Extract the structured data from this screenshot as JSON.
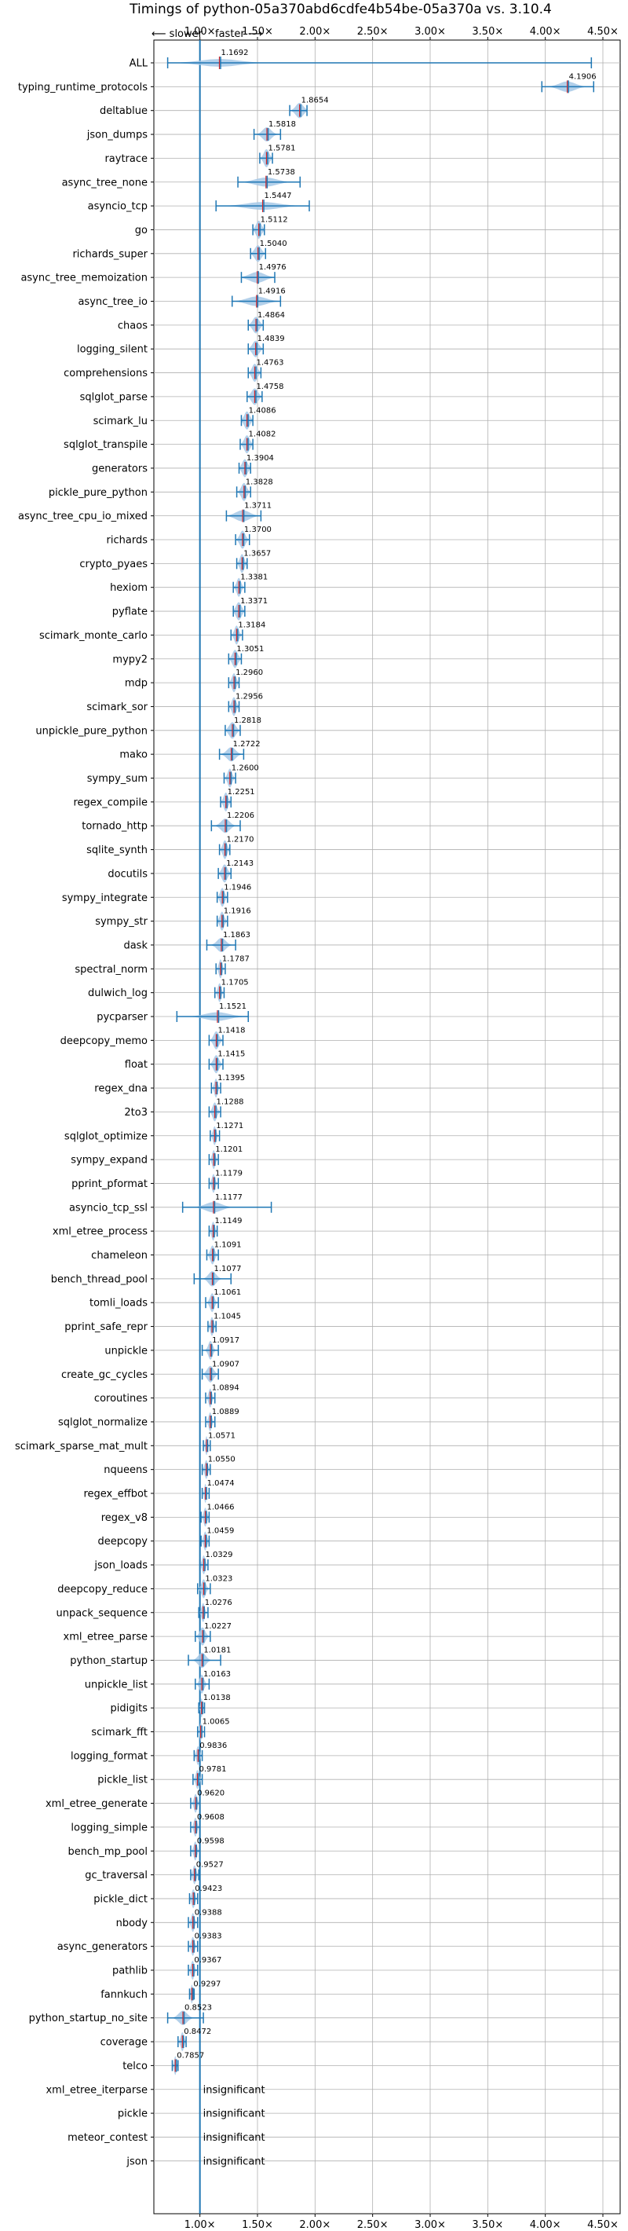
{
  "chart_data": {
    "type": "violin",
    "title": "Timings of python-05a370abd6cdfe4b54be-05a370a vs. 3.10.4",
    "direction_labels": {
      "slower": "⟵ slower",
      "faster": "faster ⟶"
    },
    "x_ticks": [
      "1.00×",
      "1.50×",
      "2.00×",
      "2.50×",
      "3.00×",
      "3.50×",
      "4.00×",
      "4.50×"
    ],
    "x_tick_values": [
      1.0,
      1.5,
      2.0,
      2.5,
      3.0,
      3.5,
      4.0,
      4.5
    ],
    "xlim": [
      0.6,
      4.65
    ],
    "baseline": 1.0,
    "grid": true,
    "insignificant_label": "insignificant",
    "colors": {
      "violin": "#a6c8e6",
      "axis_line": "#1f77b4",
      "median": "#d62728",
      "grid": "#b0b0b0"
    },
    "benchmarks": [
      {
        "name": "ALL",
        "value": 1.1692,
        "label": "1.1692",
        "lo": 0.72,
        "hi": 4.4,
        "spread": 0.35
      },
      {
        "name": "typing_runtime_protocols",
        "value": 4.1906,
        "label": "4.1906",
        "lo": 3.97,
        "hi": 4.42,
        "spread": 0.15
      },
      {
        "name": "deltablue",
        "value": 1.8654,
        "label": "1.8654",
        "lo": 1.78,
        "hi": 1.93,
        "spread": 0.07
      },
      {
        "name": "json_dumps",
        "value": 1.5818,
        "label": "1.5818",
        "lo": 1.47,
        "hi": 1.7,
        "spread": 0.08
      },
      {
        "name": "raytrace",
        "value": 1.5781,
        "label": "1.5781",
        "lo": 1.52,
        "hi": 1.63,
        "spread": 0.05
      },
      {
        "name": "async_tree_none",
        "value": 1.5738,
        "label": "1.5738",
        "lo": 1.33,
        "hi": 1.87,
        "spread": 0.2
      },
      {
        "name": "asyncio_tcp",
        "value": 1.5447,
        "label": "1.5447",
        "lo": 1.14,
        "hi": 1.95,
        "spread": 0.3
      },
      {
        "name": "go",
        "value": 1.5112,
        "label": "1.5112",
        "lo": 1.46,
        "hi": 1.56,
        "spread": 0.05
      },
      {
        "name": "richards_super",
        "value": 1.504,
        "label": "1.5040",
        "lo": 1.44,
        "hi": 1.57,
        "spread": 0.06
      },
      {
        "name": "async_tree_memoization",
        "value": 1.4976,
        "label": "1.4976",
        "lo": 1.36,
        "hi": 1.65,
        "spread": 0.14
      },
      {
        "name": "async_tree_io",
        "value": 1.4916,
        "label": "1.4916",
        "lo": 1.28,
        "hi": 1.7,
        "spread": 0.18
      },
      {
        "name": "chaos",
        "value": 1.4864,
        "label": "1.4864",
        "lo": 1.42,
        "hi": 1.55,
        "spread": 0.06
      },
      {
        "name": "logging_silent",
        "value": 1.4839,
        "label": "1.4839",
        "lo": 1.42,
        "hi": 1.55,
        "spread": 0.06
      },
      {
        "name": "comprehensions",
        "value": 1.4763,
        "label": "1.4763",
        "lo": 1.42,
        "hi": 1.53,
        "spread": 0.05
      },
      {
        "name": "sqlglot_parse",
        "value": 1.4758,
        "label": "1.4758",
        "lo": 1.41,
        "hi": 1.54,
        "spread": 0.06
      },
      {
        "name": "scimark_lu",
        "value": 1.4086,
        "label": "1.4086",
        "lo": 1.36,
        "hi": 1.46,
        "spread": 0.05
      },
      {
        "name": "sqlglot_transpile",
        "value": 1.4082,
        "label": "1.4082",
        "lo": 1.35,
        "hi": 1.46,
        "spread": 0.05
      },
      {
        "name": "generators",
        "value": 1.3904,
        "label": "1.3904",
        "lo": 1.34,
        "hi": 1.44,
        "spread": 0.05
      },
      {
        "name": "pickle_pure_python",
        "value": 1.3828,
        "label": "1.3828",
        "lo": 1.32,
        "hi": 1.44,
        "spread": 0.05
      },
      {
        "name": "async_tree_cpu_io_mixed",
        "value": 1.3711,
        "label": "1.3711",
        "lo": 1.23,
        "hi": 1.53,
        "spread": 0.13
      },
      {
        "name": "richards",
        "value": 1.37,
        "label": "1.3700",
        "lo": 1.31,
        "hi": 1.43,
        "spread": 0.05
      },
      {
        "name": "crypto_pyaes",
        "value": 1.3657,
        "label": "1.3657",
        "lo": 1.32,
        "hi": 1.41,
        "spread": 0.04
      },
      {
        "name": "hexiom",
        "value": 1.3381,
        "label": "1.3381",
        "lo": 1.29,
        "hi": 1.39,
        "spread": 0.04
      },
      {
        "name": "pyflate",
        "value": 1.3371,
        "label": "1.3371",
        "lo": 1.29,
        "hi": 1.39,
        "spread": 0.05
      },
      {
        "name": "scimark_monte_carlo",
        "value": 1.3184,
        "label": "1.3184",
        "lo": 1.27,
        "hi": 1.37,
        "spread": 0.04
      },
      {
        "name": "mypy2",
        "value": 1.3051,
        "label": "1.3051",
        "lo": 1.25,
        "hi": 1.36,
        "spread": 0.05
      },
      {
        "name": "mdp",
        "value": 1.296,
        "label": "1.2960",
        "lo": 1.25,
        "hi": 1.34,
        "spread": 0.04
      },
      {
        "name": "scimark_sor",
        "value": 1.2956,
        "label": "1.2956",
        "lo": 1.25,
        "hi": 1.34,
        "spread": 0.04
      },
      {
        "name": "unpickle_pure_python",
        "value": 1.2818,
        "label": "1.2818",
        "lo": 1.22,
        "hi": 1.35,
        "spread": 0.06
      },
      {
        "name": "mako",
        "value": 1.2722,
        "label": "1.2722",
        "lo": 1.17,
        "hi": 1.38,
        "spread": 0.08
      },
      {
        "name": "sympy_sum",
        "value": 1.26,
        "label": "1.2600",
        "lo": 1.21,
        "hi": 1.31,
        "spread": 0.04
      },
      {
        "name": "regex_compile",
        "value": 1.2251,
        "label": "1.2251",
        "lo": 1.18,
        "hi": 1.27,
        "spread": 0.04
      },
      {
        "name": "tornado_http",
        "value": 1.2206,
        "label": "1.2206",
        "lo": 1.1,
        "hi": 1.35,
        "spread": 0.08
      },
      {
        "name": "sqlite_synth",
        "value": 1.217,
        "label": "1.2170",
        "lo": 1.17,
        "hi": 1.26,
        "spread": 0.04
      },
      {
        "name": "docutils",
        "value": 1.2143,
        "label": "1.2143",
        "lo": 1.16,
        "hi": 1.27,
        "spread": 0.05
      },
      {
        "name": "sympy_integrate",
        "value": 1.1946,
        "label": "1.1946",
        "lo": 1.15,
        "hi": 1.24,
        "spread": 0.04
      },
      {
        "name": "sympy_str",
        "value": 1.1916,
        "label": "1.1916",
        "lo": 1.15,
        "hi": 1.24,
        "spread": 0.04
      },
      {
        "name": "dask",
        "value": 1.1863,
        "label": "1.1863",
        "lo": 1.06,
        "hi": 1.31,
        "spread": 0.08
      },
      {
        "name": "spectral_norm",
        "value": 1.1787,
        "label": "1.1787",
        "lo": 1.14,
        "hi": 1.22,
        "spread": 0.03
      },
      {
        "name": "dulwich_log",
        "value": 1.1705,
        "label": "1.1705",
        "lo": 1.13,
        "hi": 1.21,
        "spread": 0.03
      },
      {
        "name": "pycparser",
        "value": 1.1521,
        "label": "1.1521",
        "lo": 0.8,
        "hi": 1.42,
        "spread": 0.22
      },
      {
        "name": "deepcopy_memo",
        "value": 1.1418,
        "label": "1.1418",
        "lo": 1.08,
        "hi": 1.2,
        "spread": 0.05
      },
      {
        "name": "float",
        "value": 1.1415,
        "label": "1.1415",
        "lo": 1.08,
        "hi": 1.2,
        "spread": 0.05
      },
      {
        "name": "regex_dna",
        "value": 1.1395,
        "label": "1.1395",
        "lo": 1.1,
        "hi": 1.18,
        "spread": 0.03
      },
      {
        "name": "2to3",
        "value": 1.1288,
        "label": "1.1288",
        "lo": 1.08,
        "hi": 1.18,
        "spread": 0.04
      },
      {
        "name": "sqlglot_optimize",
        "value": 1.1271,
        "label": "1.1271",
        "lo": 1.09,
        "hi": 1.17,
        "spread": 0.03
      },
      {
        "name": "sympy_expand",
        "value": 1.1201,
        "label": "1.1201",
        "lo": 1.08,
        "hi": 1.16,
        "spread": 0.03
      },
      {
        "name": "pprint_pformat",
        "value": 1.1179,
        "label": "1.1179",
        "lo": 1.08,
        "hi": 1.16,
        "spread": 0.03
      },
      {
        "name": "asyncio_tcp_ssl",
        "value": 1.1177,
        "label": "1.1177",
        "lo": 0.85,
        "hi": 1.62,
        "spread": 0.15
      },
      {
        "name": "xml_etree_process",
        "value": 1.1149,
        "label": "1.1149",
        "lo": 1.08,
        "hi": 1.15,
        "spread": 0.03
      },
      {
        "name": "chameleon",
        "value": 1.1091,
        "label": "1.1091",
        "lo": 1.06,
        "hi": 1.16,
        "spread": 0.04
      },
      {
        "name": "bench_thread_pool",
        "value": 1.1077,
        "label": "1.1077",
        "lo": 0.95,
        "hi": 1.27,
        "spread": 0.07
      },
      {
        "name": "tomli_loads",
        "value": 1.1061,
        "label": "1.1061",
        "lo": 1.05,
        "hi": 1.16,
        "spread": 0.04
      },
      {
        "name": "pprint_safe_repr",
        "value": 1.1045,
        "label": "1.1045",
        "lo": 1.07,
        "hi": 1.14,
        "spread": 0.03
      },
      {
        "name": "unpickle",
        "value": 1.0917,
        "label": "1.0917",
        "lo": 1.02,
        "hi": 1.16,
        "spread": 0.04
      },
      {
        "name": "create_gc_cycles",
        "value": 1.0907,
        "label": "1.0907",
        "lo": 1.02,
        "hi": 1.16,
        "spread": 0.06
      },
      {
        "name": "coroutines",
        "value": 1.0894,
        "label": "1.0894",
        "lo": 1.05,
        "hi": 1.13,
        "spread": 0.03
      },
      {
        "name": "sqlglot_normalize",
        "value": 1.0889,
        "label": "1.0889",
        "lo": 1.05,
        "hi": 1.13,
        "spread": 0.03
      },
      {
        "name": "scimark_sparse_mat_mult",
        "value": 1.0571,
        "label": "1.0571",
        "lo": 1.03,
        "hi": 1.09,
        "spread": 0.02
      },
      {
        "name": "nqueens",
        "value": 1.055,
        "label": "1.0550",
        "lo": 1.02,
        "hi": 1.09,
        "spread": 0.03
      },
      {
        "name": "regex_effbot",
        "value": 1.0474,
        "label": "1.0474",
        "lo": 1.02,
        "hi": 1.08,
        "spread": 0.02
      },
      {
        "name": "regex_v8",
        "value": 1.0466,
        "label": "1.0466",
        "lo": 1.01,
        "hi": 1.08,
        "spread": 0.03
      },
      {
        "name": "deepcopy",
        "value": 1.0459,
        "label": "1.0459",
        "lo": 1.01,
        "hi": 1.08,
        "spread": 0.03
      },
      {
        "name": "json_loads",
        "value": 1.0329,
        "label": "1.0329",
        "lo": 1.0,
        "hi": 1.07,
        "spread": 0.03
      },
      {
        "name": "deepcopy_reduce",
        "value": 1.0323,
        "label": "1.0323",
        "lo": 0.98,
        "hi": 1.09,
        "spread": 0.04
      },
      {
        "name": "unpack_sequence",
        "value": 1.0276,
        "label": "1.0276",
        "lo": 0.99,
        "hi": 1.07,
        "spread": 0.03
      },
      {
        "name": "xml_etree_parse",
        "value": 1.0227,
        "label": "1.0227",
        "lo": 0.96,
        "hi": 1.09,
        "spread": 0.05
      },
      {
        "name": "python_startup",
        "value": 1.0181,
        "label": "1.0181",
        "lo": 0.9,
        "hi": 1.18,
        "spread": 0.07
      },
      {
        "name": "unpickle_list",
        "value": 1.0163,
        "label": "1.0163",
        "lo": 0.96,
        "hi": 1.08,
        "spread": 0.04
      },
      {
        "name": "pidigits",
        "value": 1.0138,
        "label": "1.0138",
        "lo": 0.99,
        "hi": 1.04,
        "spread": 0.02
      },
      {
        "name": "scimark_fft",
        "value": 1.0065,
        "label": "1.0065",
        "lo": 0.98,
        "hi": 1.04,
        "spread": 0.02
      },
      {
        "name": "logging_format",
        "value": 0.9836,
        "label": "0.9836",
        "lo": 0.95,
        "hi": 1.02,
        "spread": 0.03
      },
      {
        "name": "pickle_list",
        "value": 0.9781,
        "label": "0.9781",
        "lo": 0.94,
        "hi": 1.02,
        "spread": 0.03
      },
      {
        "name": "xml_etree_generate",
        "value": 0.962,
        "label": "0.9620",
        "lo": 0.92,
        "hi": 1.0,
        "spread": 0.03
      },
      {
        "name": "logging_simple",
        "value": 0.9608,
        "label": "0.9608",
        "lo": 0.92,
        "hi": 1.0,
        "spread": 0.03
      },
      {
        "name": "bench_mp_pool",
        "value": 0.9598,
        "label": "0.9598",
        "lo": 0.92,
        "hi": 1.0,
        "spread": 0.03
      },
      {
        "name": "gc_traversal",
        "value": 0.9527,
        "label": "0.9527",
        "lo": 0.92,
        "hi": 0.99,
        "spread": 0.03
      },
      {
        "name": "pickle_dict",
        "value": 0.9423,
        "label": "0.9423",
        "lo": 0.91,
        "hi": 0.98,
        "spread": 0.03
      },
      {
        "name": "nbody",
        "value": 0.9388,
        "label": "0.9388",
        "lo": 0.9,
        "hi": 0.98,
        "spread": 0.03
      },
      {
        "name": "async_generators",
        "value": 0.9383,
        "label": "0.9383",
        "lo": 0.9,
        "hi": 0.98,
        "spread": 0.03
      },
      {
        "name": "pathlib",
        "value": 0.9367,
        "label": "0.9367",
        "lo": 0.9,
        "hi": 0.98,
        "spread": 0.03
      },
      {
        "name": "fannkuch",
        "value": 0.9297,
        "label": "0.9297",
        "lo": 0.91,
        "hi": 0.95,
        "spread": 0.02
      },
      {
        "name": "python_startup_no_site",
        "value": 0.8523,
        "label": "0.8523",
        "lo": 0.72,
        "hi": 1.03,
        "spread": 0.08
      },
      {
        "name": "coverage",
        "value": 0.8472,
        "label": "0.8472",
        "lo": 0.81,
        "hi": 0.88,
        "spread": 0.03
      },
      {
        "name": "telco",
        "value": 0.7857,
        "label": "0.7857",
        "lo": 0.76,
        "hi": 0.81,
        "spread": 0.02
      },
      {
        "name": "xml_etree_iterparse",
        "insignificant": true
      },
      {
        "name": "pickle",
        "insignificant": true
      },
      {
        "name": "meteor_contest",
        "insignificant": true
      },
      {
        "name": "json",
        "insignificant": true
      }
    ]
  }
}
